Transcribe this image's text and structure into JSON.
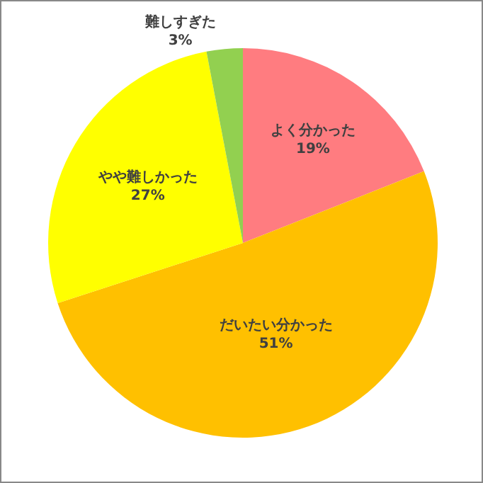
{
  "chart_data": {
    "type": "pie",
    "categories": [
      "よく分かった",
      "だいたい分かった",
      "やや難しかった",
      "難しすぎた"
    ],
    "values": [
      19,
      51,
      27,
      3
    ],
    "value_labels": [
      "19%",
      "51%",
      "27%",
      "3%"
    ],
    "colors": [
      "#ff7c80",
      "#ffc000",
      "#ffff00",
      "#92d050"
    ],
    "legend": false
  }
}
